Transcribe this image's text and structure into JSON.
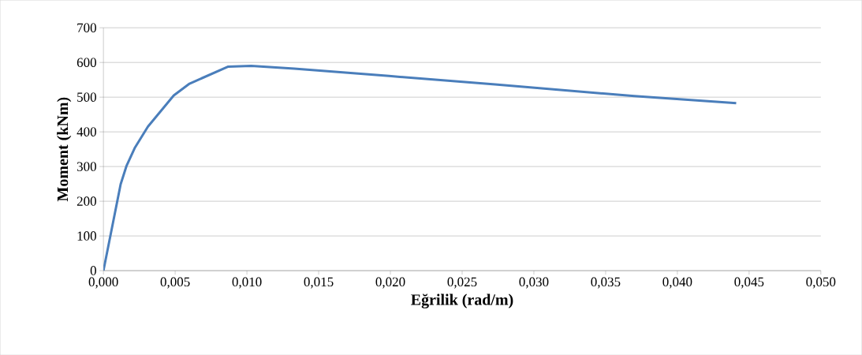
{
  "chart_data": {
    "type": "line",
    "xlabel": "Eğrilik (rad/m)",
    "ylabel": "Moment (kNm)",
    "x": [
      0,
      0.0012,
      0.0016,
      0.0022,
      0.0031,
      0.0049,
      0.006,
      0.0087,
      0.0103,
      0.0133,
      0.0199,
      0.0273,
      0.037,
      0.0441
    ],
    "series": [
      {
        "color": "#4a7ebb",
        "values": [
          0,
          249,
          301,
          355,
          415,
          505,
          539,
          588,
          590,
          582,
          561,
          537,
          503,
          483
        ]
      }
    ],
    "xlim": [
      0,
      0.05
    ],
    "ylim": [
      0,
      700
    ],
    "xticks": [
      {
        "value": 0,
        "label": "0,000"
      },
      {
        "value": 0.005,
        "label": "0,005"
      },
      {
        "value": 0.01,
        "label": "0,010"
      },
      {
        "value": 0.015,
        "label": "0,015"
      },
      {
        "value": 0.02,
        "label": "0,020"
      },
      {
        "value": 0.025,
        "label": "0,025"
      },
      {
        "value": 0.03,
        "label": "0,030"
      },
      {
        "value": 0.035,
        "label": "0,035"
      },
      {
        "value": 0.04,
        "label": "0,040"
      },
      {
        "value": 0.045,
        "label": "0,045"
      },
      {
        "value": 0.05,
        "label": "0,050"
      }
    ],
    "yticks": [
      0,
      100,
      200,
      300,
      400,
      500,
      600,
      700
    ],
    "grid": "y",
    "marker": "none",
    "line_style": "solid"
  }
}
